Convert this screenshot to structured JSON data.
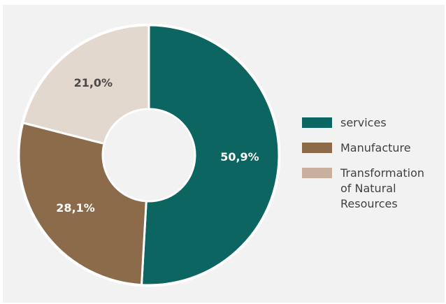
{
  "chart_data": {
    "type": "pie",
    "donut": true,
    "title": "",
    "legend_position": "right",
    "slices": [
      {
        "name": "services",
        "value": 50.9,
        "label": "50,9%",
        "color": "#0c6560",
        "label_color": "#ffffff"
      },
      {
        "name": "Manufacture",
        "value": 28.1,
        "label": "28,1%",
        "color": "#8b6b49",
        "label_color": "#ffffff"
      },
      {
        "name": "Transformation of Natural Resources",
        "value": 21.0,
        "label": "21,0%",
        "color": "#e2d8ce",
        "label_color": "#4a4a4a"
      }
    ]
  },
  "legend": {
    "items": [
      {
        "label": "services",
        "color": "#0c6560"
      },
      {
        "label": "Manufacture",
        "color": "#8b6b49"
      },
      {
        "label": "Transformation of Natural Resources",
        "color": "#c9b09c"
      }
    ]
  }
}
